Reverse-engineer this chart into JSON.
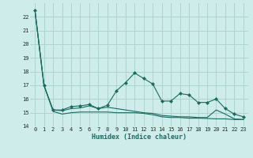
{
  "xlabel": "Humidex (Indice chaleur)",
  "background_color": "#ceecea",
  "grid_color": "#aed4d0",
  "line_color": "#1a6b60",
  "x_values": [
    0,
    1,
    2,
    3,
    4,
    5,
    6,
    7,
    8,
    9,
    10,
    11,
    12,
    13,
    14,
    15,
    16,
    17,
    18,
    19,
    20,
    21,
    22,
    23
  ],
  "s1": [
    22.5,
    17.0,
    15.2,
    15.15,
    15.3,
    15.35,
    15.5,
    15.3,
    15.4,
    15.3,
    15.2,
    15.1,
    15.0,
    14.95,
    14.8,
    14.75,
    14.7,
    14.7,
    14.65,
    14.65,
    15.2,
    14.9,
    14.55,
    14.5
  ],
  "s2": [
    22.5,
    17.0,
    15.2,
    15.2,
    15.45,
    15.5,
    15.6,
    15.3,
    15.55,
    16.6,
    17.2,
    17.9,
    17.5,
    17.1,
    15.85,
    15.85,
    16.4,
    16.3,
    15.75,
    15.75,
    16.0,
    15.3,
    14.9,
    14.7
  ],
  "s3": [
    22.5,
    17.0,
    15.1,
    14.9,
    15.0,
    15.05,
    15.05,
    15.05,
    15.05,
    15.0,
    15.0,
    15.0,
    14.95,
    14.85,
    14.7,
    14.65,
    14.65,
    14.6,
    14.6,
    14.58,
    14.55,
    14.55,
    14.5,
    14.5
  ],
  "ylim": [
    14.0,
    23.0
  ],
  "xlim": [
    -0.5,
    23.5
  ],
  "yticks": [
    14,
    15,
    16,
    17,
    18,
    19,
    20,
    21,
    22
  ],
  "xticks": [
    0,
    1,
    2,
    3,
    4,
    5,
    6,
    7,
    8,
    9,
    10,
    11,
    12,
    13,
    14,
    15,
    16,
    17,
    18,
    19,
    20,
    21,
    22,
    23
  ]
}
